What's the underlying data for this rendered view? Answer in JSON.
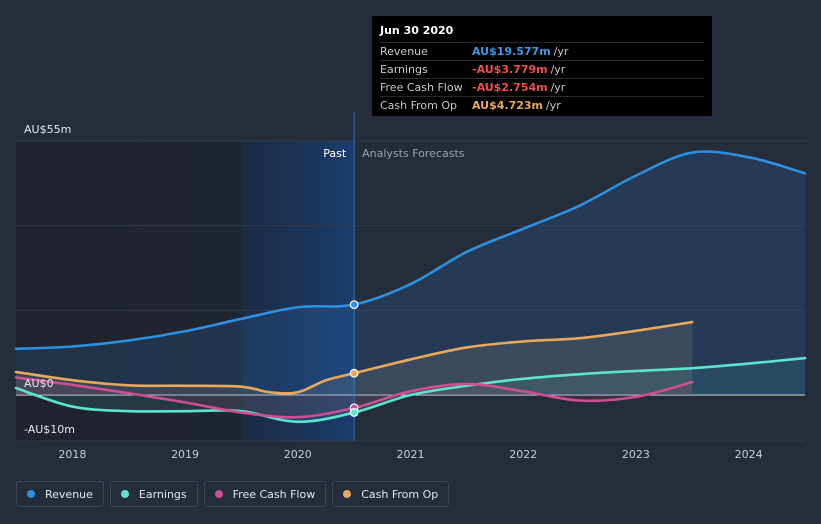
{
  "tooltip": {
    "date": "Jun 30 2020",
    "rows": [
      {
        "label": "Revenue",
        "value": "AU$19.577m",
        "unit": "/yr",
        "color": "#3a9ae8"
      },
      {
        "label": "Earnings",
        "value": "-AU$3.779m",
        "unit": "/yr",
        "color": "#f04e4e"
      },
      {
        "label": "Free Cash Flow",
        "value": "-AU$2.754m",
        "unit": "/yr",
        "color": "#f04e4e"
      },
      {
        "label": "Cash From Op",
        "value": "AU$4.723m",
        "unit": "/yr",
        "color": "#e8a95c"
      }
    ]
  },
  "legend": [
    {
      "label": "Revenue",
      "color": "#2e90e0"
    },
    {
      "label": "Earnings",
      "color": "#5de4d0"
    },
    {
      "label": "Free Cash Flow",
      "color": "#cf4f94"
    },
    {
      "label": "Cash From Op",
      "color": "#e8a95c"
    }
  ],
  "chart_data": {
    "type": "line",
    "title": "",
    "xlabel": "",
    "ylabel": "",
    "y_tick_labels": [
      "AU$55m",
      "AU$0",
      "-AU$10m"
    ],
    "ylim": [
      -10,
      55
    ],
    "xlim": [
      2017.5,
      2024.5
    ],
    "x_tick_values": [
      2018,
      2019,
      2020,
      2021,
      2022,
      2023,
      2024
    ],
    "x_tick_labels": [
      "2018",
      "2019",
      "2020",
      "2021",
      "2022",
      "2023",
      "2024"
    ],
    "past_label": "Past",
    "forecast_label": "Analysts Forecasts",
    "divider_x": 2020.5,
    "highlight_start": 2019.5,
    "series": [
      {
        "name": "Revenue",
        "color": "#2e90e0",
        "x": [
          2017.5,
          2018,
          2018.5,
          2019,
          2019.5,
          2020,
          2020.5,
          2021,
          2021.5,
          2022,
          2022.5,
          2023,
          2023.5,
          2024,
          2024.5
        ],
        "y": [
          10,
          10.5,
          11.8,
          13.8,
          16.5,
          19,
          19.6,
          24,
          31,
          36,
          41,
          47.5,
          52.5,
          51.5,
          48
        ]
      },
      {
        "name": "Earnings",
        "color": "#5de4d0",
        "x": [
          2017.5,
          2018,
          2018.5,
          2019,
          2019.5,
          2020,
          2020.5,
          2021,
          2021.5,
          2022,
          2022.5,
          2023,
          2023.5,
          2024,
          2024.5
        ],
        "y": [
          1.5,
          -2.5,
          -3.5,
          -3.5,
          -3.5,
          -5.8,
          -3.8,
          0,
          2,
          3.5,
          4.5,
          5.2,
          5.8,
          6.8,
          8
        ]
      },
      {
        "name": "Free Cash Flow",
        "color": "#cf4f94",
        "x": [
          2017.5,
          2018,
          2018.5,
          2019,
          2019.5,
          2020,
          2020.5,
          2021,
          2021.5,
          2022,
          2022.5,
          2023,
          2023.5
        ],
        "y": [
          3.8,
          2.2,
          0.4,
          -1.6,
          -3.8,
          -4.8,
          -2.8,
          0.8,
          2.4,
          0.8,
          -1.2,
          -0.4,
          2.8
        ]
      },
      {
        "name": "Cash From Op",
        "color": "#e8a95c",
        "x": [
          2017.5,
          2018,
          2018.5,
          2019,
          2019.5,
          2019.75,
          2020,
          2020.25,
          2020.5,
          2021,
          2021.5,
          2022,
          2022.5,
          2023,
          2023.5
        ],
        "y": [
          5,
          3.2,
          2.1,
          2,
          1.8,
          0.6,
          0.6,
          3.2,
          4.7,
          7.7,
          10.3,
          11.6,
          12.3,
          13.9,
          15.8
        ]
      }
    ],
    "markers": [
      {
        "series": "Revenue",
        "x": 2020.5,
        "y": 19.577
      },
      {
        "series": "Cash From Op",
        "x": 2020.5,
        "y": 4.723
      },
      {
        "series": "Free Cash Flow",
        "x": 2020.5,
        "y": -2.754
      },
      {
        "series": "Earnings",
        "x": 2020.5,
        "y": -3.779
      }
    ]
  }
}
